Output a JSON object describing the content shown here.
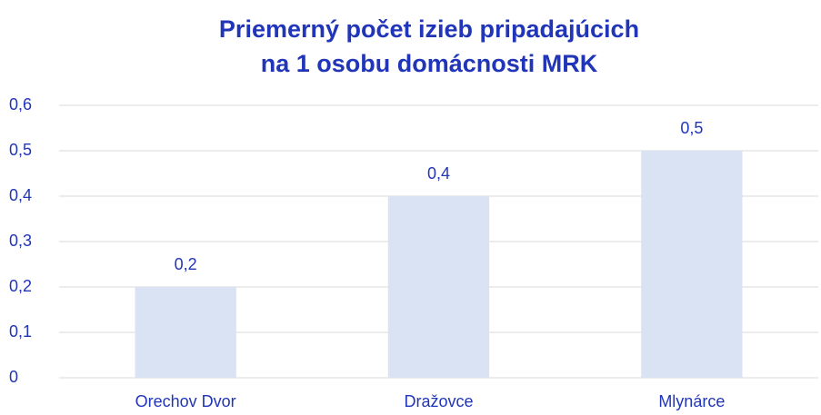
{
  "chart_data": {
    "type": "bar",
    "title": [
      "Priemerný počet izieb pripadajúcich",
      "na 1 osobu domácnosti MRK"
    ],
    "categories": [
      "Orechov Dvor",
      "Dražovce",
      "Mlynárce"
    ],
    "values": [
      0.2,
      0.4,
      0.5
    ],
    "value_labels": [
      "0,2",
      "0,4",
      "0,5"
    ],
    "color": "#dae3f3",
    "ylim": [
      0,
      0.6
    ],
    "yticks": [
      0,
      {
        "value": 0.1,
        "label": "0,1"
      },
      {
        "value": 0.2,
        "label": "0,2"
      },
      {
        "value": 0.3,
        "label": "0,3"
      },
      {
        "value": 0.4,
        "label": "0,4"
      },
      {
        "value": 0.5,
        "label": "0,5"
      },
      {
        "value": 0.6,
        "label": "0,6"
      }
    ],
    "grid": true
  }
}
